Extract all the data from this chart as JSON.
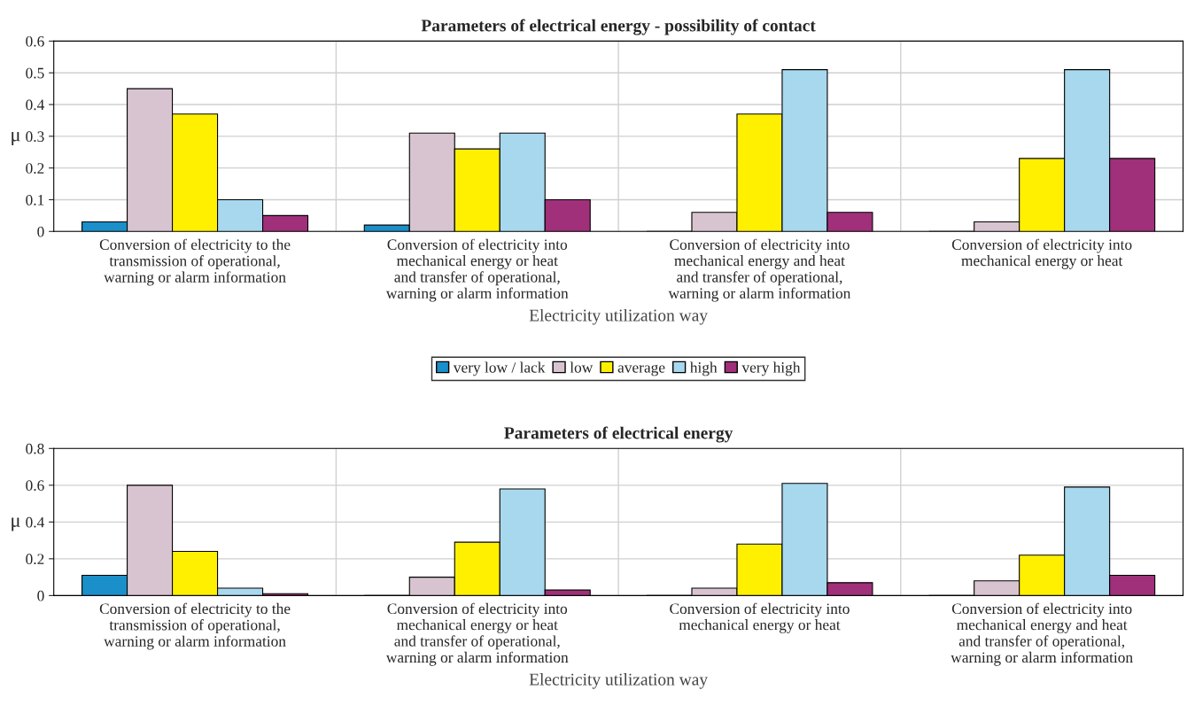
{
  "chart_data": [
    {
      "type": "bar",
      "title": "Parameters of electrical energy - possibility of contact",
      "xlabel": "Electricity utilization way",
      "ylabel": "μ",
      "categories": [
        "Conversion of electricity to the\ntransmission of operational,\nwarning or alarm information",
        "Conversion of electricity into\nmechanical energy or heat\nand transfer of operational,\nwarning or alarm information",
        "Conversion of electricity into\nmechanical energy and heat\nand transfer of operational,\nwarning or alarm information",
        "Conversion of electricity into\nmechanical energy or heat"
      ],
      "series": [
        {
          "name": "very low / lack",
          "color": "#1a8fc9",
          "values": [
            0.03,
            0.02,
            0,
            0
          ]
        },
        {
          "name": "low",
          "color": "#d8c4d0",
          "values": [
            0.45,
            0.31,
            0.06,
            0.03
          ]
        },
        {
          "name": "average",
          "color": "#fff000",
          "values": [
            0.37,
            0.26,
            0.37,
            0.23
          ]
        },
        {
          "name": "high",
          "color": "#a8d8ee",
          "values": [
            0.1,
            0.31,
            0.51,
            0.51
          ]
        },
        {
          "name": "very high",
          "color": "#a0307a",
          "values": [
            0.05,
            0.1,
            0.06,
            0.23
          ]
        }
      ],
      "ylim": [
        0,
        0.6
      ],
      "yticks": [
        0,
        0.1,
        0.2,
        0.3,
        0.4,
        0.5,
        0.6
      ],
      "grid": true,
      "legend": "bottom"
    },
    {
      "type": "bar",
      "title": "Parameters of electrical energy",
      "xlabel": "Electricity utilization way",
      "ylabel": "μ",
      "categories": [
        "Conversion of electricity to the\ntransmission of operational,\nwarning or alarm information",
        "Conversion of electricity into\nmechanical energy or heat\nand transfer of operational,\nwarning or alarm information",
        "Conversion of electricity into\nmechanical energy or heat",
        "Conversion of electricity into\nmechanical energy and heat\nand transfer of operational,\nwarning or alarm information"
      ],
      "series": [
        {
          "color": "#1a8fc9",
          "values": [
            0.11,
            0,
            0,
            0
          ]
        },
        {
          "color": "#d8c4d0",
          "values": [
            0.6,
            0.1,
            0.04,
            0.08
          ]
        },
        {
          "color": "#fff000",
          "values": [
            0.24,
            0.29,
            0.28,
            0.22
          ]
        },
        {
          "color": "#a8d8ee",
          "values": [
            0.04,
            0.58,
            0.61,
            0.59
          ]
        },
        {
          "color": "#a0307a",
          "values": [
            0.01,
            0.03,
            0.07,
            0.11
          ]
        }
      ],
      "ylim": [
        0,
        0.8
      ],
      "yticks": [
        0,
        0.2,
        0.4,
        0.6,
        0.8
      ],
      "grid": true
    }
  ]
}
